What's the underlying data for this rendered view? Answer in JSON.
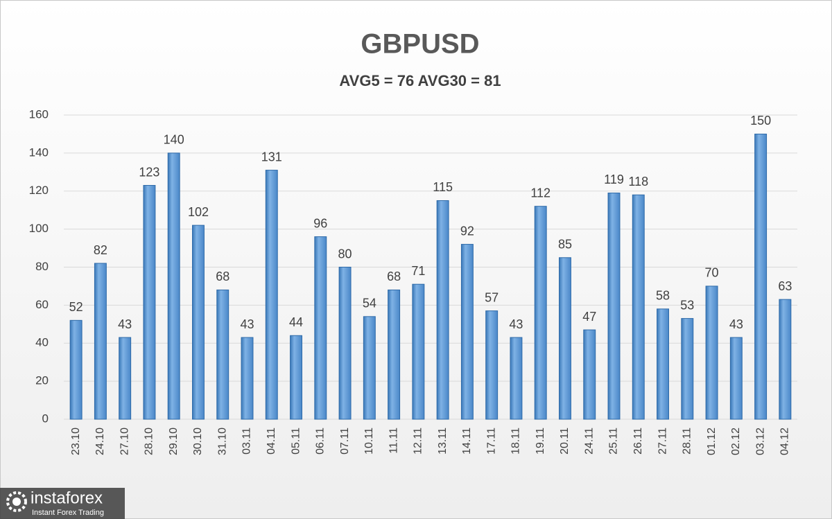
{
  "chart_data": {
    "type": "bar",
    "title": "GBPUSD",
    "subtitle": "AVG5 = 76 AVG30 = 81",
    "categories": [
      "23.10",
      "24.10",
      "27.10",
      "28.10",
      "29.10",
      "30.10",
      "31.10",
      "03.11",
      "04.11",
      "05.11",
      "06.11",
      "07.11",
      "10.11",
      "11.11",
      "12.11",
      "13.11",
      "14.11",
      "17.11",
      "18.11",
      "19.11",
      "20.11",
      "24.11",
      "25.11",
      "26.11",
      "27.11",
      "28.11",
      "01.12",
      "02.12",
      "03.12",
      "04.12"
    ],
    "values": [
      52,
      82,
      43,
      123,
      140,
      102,
      68,
      43,
      131,
      44,
      96,
      80,
      54,
      68,
      71,
      115,
      92,
      57,
      43,
      112,
      85,
      47,
      119,
      118,
      58,
      53,
      70,
      43,
      150,
      63
    ],
    "color": "#5b9bd5",
    "ylim": [
      0,
      160
    ],
    "yticks": [
      0,
      20,
      40,
      60,
      80,
      100,
      120,
      140,
      160
    ],
    "grid": true
  },
  "watermark": {
    "brand": "instaforex",
    "tagline": "Instant Forex Trading"
  }
}
